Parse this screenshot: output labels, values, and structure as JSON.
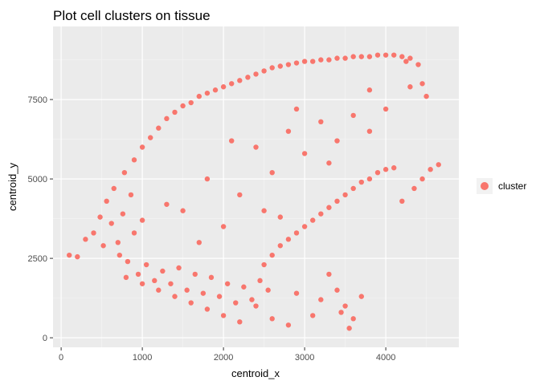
{
  "chart_data": {
    "type": "scatter",
    "title": "Plot cell clusters on tissue",
    "xlabel": "centroid_x",
    "ylabel": "centroid_y",
    "xlim": [
      -100,
      4900
    ],
    "ylim": [
      -300,
      9800
    ],
    "xticks": [
      0,
      1000,
      2000,
      3000,
      4000
    ],
    "yticks": [
      0,
      2500,
      5000,
      7500
    ],
    "x_tick_labels": [
      "0",
      "1000",
      "2000",
      "3000",
      "4000"
    ],
    "y_tick_labels": [
      "0",
      "2500",
      "5000",
      "7500"
    ],
    "grid": true,
    "panel_background": "#ebebeb",
    "point_color": "#f8766d",
    "legend": {
      "position": "right",
      "entries": [
        {
          "label": "cluster",
          "color": "#f8766d"
        }
      ]
    },
    "series": [
      {
        "name": "cluster",
        "points": [
          [
            100,
            2600
          ],
          [
            200,
            2550
          ],
          [
            300,
            3100
          ],
          [
            400,
            3300
          ],
          [
            480,
            3800
          ],
          [
            520,
            2900
          ],
          [
            560,
            4300
          ],
          [
            620,
            3600
          ],
          [
            650,
            4700
          ],
          [
            700,
            3000
          ],
          [
            720,
            2600
          ],
          [
            760,
            3900
          ],
          [
            780,
            5200
          ],
          [
            820,
            2400
          ],
          [
            860,
            4500
          ],
          [
            900,
            3300
          ],
          [
            900,
            5600
          ],
          [
            950,
            2000
          ],
          [
            1000,
            6000
          ],
          [
            1000,
            3700
          ],
          [
            1050,
            2300
          ],
          [
            1100,
            6300
          ],
          [
            1150,
            1800
          ],
          [
            1200,
            6600
          ],
          [
            1250,
            2100
          ],
          [
            1300,
            6900
          ],
          [
            1350,
            1700
          ],
          [
            1400,
            7100
          ],
          [
            1450,
            2200
          ],
          [
            1500,
            7300
          ],
          [
            1550,
            1500
          ],
          [
            1600,
            7400
          ],
          [
            1650,
            2000
          ],
          [
            1700,
            7600
          ],
          [
            1750,
            1400
          ],
          [
            1800,
            7700
          ],
          [
            1850,
            1900
          ],
          [
            1900,
            7800
          ],
          [
            1950,
            1300
          ],
          [
            2000,
            7900
          ],
          [
            2050,
            1700
          ],
          [
            2100,
            8000
          ],
          [
            2150,
            1100
          ],
          [
            2200,
            8100
          ],
          [
            2250,
            1600
          ],
          [
            2300,
            8200
          ],
          [
            2350,
            1200
          ],
          [
            2400,
            8300
          ],
          [
            2450,
            1800
          ],
          [
            2500,
            8400
          ],
          [
            2500,
            2300
          ],
          [
            2550,
            1500
          ],
          [
            2600,
            8500
          ],
          [
            2600,
            2600
          ],
          [
            2700,
            8550
          ],
          [
            2700,
            2900
          ],
          [
            2800,
            8600
          ],
          [
            2800,
            3100
          ],
          [
            2900,
            8650
          ],
          [
            2900,
            3300
          ],
          [
            3000,
            8700
          ],
          [
            3000,
            3500
          ],
          [
            3100,
            8700
          ],
          [
            3100,
            3700
          ],
          [
            3200,
            8750
          ],
          [
            3200,
            3900
          ],
          [
            3300,
            8750
          ],
          [
            3300,
            4100
          ],
          [
            3400,
            8800
          ],
          [
            3400,
            4300
          ],
          [
            3500,
            8800
          ],
          [
            3500,
            4500
          ],
          [
            3600,
            8850
          ],
          [
            3600,
            4700
          ],
          [
            3700,
            8850
          ],
          [
            3700,
            4900
          ],
          [
            3800,
            8850
          ],
          [
            3800,
            5000
          ],
          [
            3900,
            8900
          ],
          [
            3900,
            5200
          ],
          [
            4000,
            8900
          ],
          [
            4000,
            5300
          ],
          [
            4100,
            8900
          ],
          [
            4100,
            5350
          ],
          [
            4200,
            8850
          ],
          [
            4250,
            8700
          ],
          [
            4300,
            8800
          ],
          [
            4400,
            8600
          ],
          [
            4450,
            8000
          ],
          [
            4500,
            7600
          ],
          [
            4350,
            4700
          ],
          [
            4450,
            5000
          ],
          [
            4550,
            5300
          ],
          [
            4650,
            5450
          ],
          [
            4200,
            4300
          ],
          [
            3300,
            2000
          ],
          [
            3400,
            1500
          ],
          [
            3500,
            1000
          ],
          [
            3600,
            600
          ],
          [
            3700,
            1300
          ],
          [
            3550,
            300
          ],
          [
            3450,
            800
          ],
          [
            3200,
            1200
          ],
          [
            3100,
            700
          ],
          [
            2900,
            1400
          ],
          [
            2800,
            400
          ],
          [
            2600,
            600
          ],
          [
            2400,
            1000
          ],
          [
            2200,
            500
          ],
          [
            2000,
            700
          ],
          [
            1800,
            900
          ],
          [
            1600,
            1100
          ],
          [
            1400,
            1300
          ],
          [
            1200,
            1500
          ],
          [
            1000,
            1700
          ],
          [
            800,
            1900
          ],
          [
            1500,
            4000
          ],
          [
            1800,
            5000
          ],
          [
            2000,
            3500
          ],
          [
            2200,
            4500
          ],
          [
            2400,
            6000
          ],
          [
            2600,
            5200
          ],
          [
            2800,
            6500
          ],
          [
            3000,
            5800
          ],
          [
            3200,
            6800
          ],
          [
            3400,
            6200
          ],
          [
            3600,
            7000
          ],
          [
            3800,
            6500
          ],
          [
            4000,
            7200
          ],
          [
            1700,
            3000
          ],
          [
            2100,
            6200
          ],
          [
            2500,
            4000
          ],
          [
            2900,
            7200
          ],
          [
            3300,
            5500
          ],
          [
            1300,
            4200
          ],
          [
            2700,
            3800
          ],
          [
            3800,
            7800
          ],
          [
            4300,
            7900
          ]
        ]
      }
    ]
  }
}
